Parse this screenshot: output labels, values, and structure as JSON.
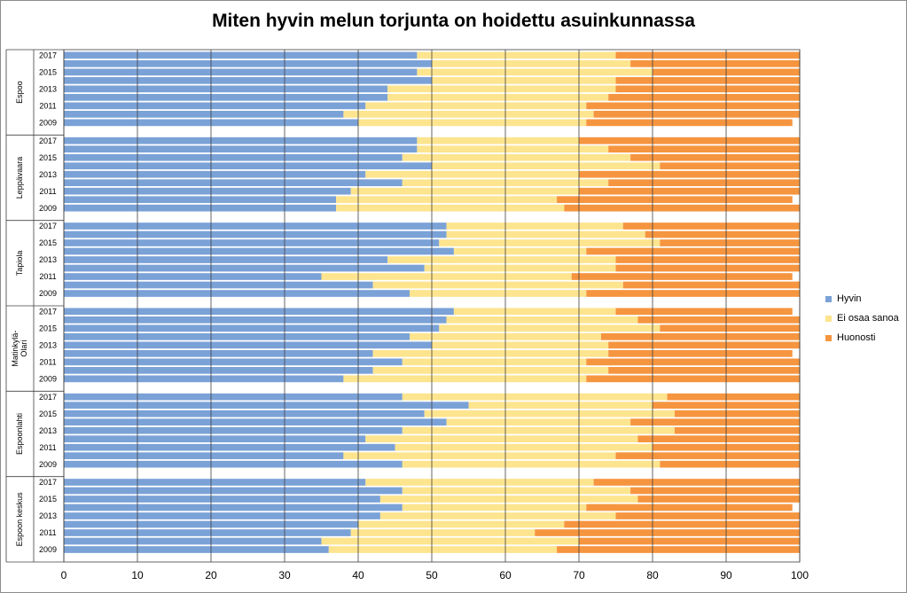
{
  "chart_data": {
    "type": "bar",
    "stacked": true,
    "orientation": "horizontal",
    "title": "Miten hyvin melun torjunta on hoidettu asuinkunnassa",
    "xlim": [
      0,
      100
    ],
    "xticks": [
      0,
      10,
      20,
      30,
      40,
      50,
      60,
      70,
      80,
      90,
      100
    ],
    "grid": true,
    "legend_position": "right",
    "series": [
      {
        "name": "Hyvin",
        "color": "#7ba2d7"
      },
      {
        "name": "Ei osaa sanoa",
        "color": "#fde48e"
      },
      {
        "name": "Huonosti",
        "color": "#f6953f"
      }
    ],
    "groups": [
      {
        "name": "Espoo",
        "years": [
          "2017",
          "2016",
          "2015",
          "2014",
          "2013",
          "2012",
          "2011",
          "2010",
          "2009"
        ],
        "shown_year_labels": [
          "2017",
          "2015",
          "2013",
          "2011",
          "2009"
        ],
        "hyvin": [
          48,
          50,
          48,
          50,
          44,
          44,
          41,
          38,
          40
        ],
        "ei_osaa": [
          27,
          27,
          32,
          25,
          31,
          30,
          30,
          34,
          31
        ],
        "huonosti": [
          25,
          23,
          20,
          25,
          25,
          26,
          29,
          28,
          28
        ]
      },
      {
        "name": "Leppävaara",
        "years": [
          "2017",
          "2016",
          "2015",
          "2014",
          "2013",
          "2012",
          "2011",
          "2010",
          "2009"
        ],
        "shown_year_labels": [
          "2017",
          "2015",
          "2013",
          "2011",
          "2009"
        ],
        "hyvin": [
          48,
          48,
          46,
          50,
          41,
          46,
          39,
          37,
          37
        ],
        "ei_osaa": [
          22,
          26,
          31,
          31,
          29,
          28,
          31,
          30,
          31
        ],
        "huonosti": [
          30,
          26,
          23,
          19,
          30,
          26,
          30,
          32,
          32
        ]
      },
      {
        "name": "Tapiola",
        "years": [
          "2017",
          "2016",
          "2015",
          "2014",
          "2013",
          "2012",
          "2011",
          "2010",
          "2009"
        ],
        "shown_year_labels": [
          "2017",
          "2015",
          "2013",
          "2011",
          "2009"
        ],
        "hyvin": [
          52,
          52,
          51,
          53,
          44,
          49,
          35,
          42,
          47
        ],
        "ei_osaa": [
          24,
          27,
          30,
          18,
          31,
          26,
          34,
          34,
          24
        ],
        "huonosti": [
          24,
          21,
          19,
          29,
          25,
          25,
          30,
          24,
          29
        ]
      },
      {
        "name": "Matinkylä-Olari",
        "years": [
          "2017",
          "2016",
          "2015",
          "2014",
          "2013",
          "2012",
          "2011",
          "2010",
          "2009"
        ],
        "shown_year_labels": [
          "2017",
          "2015",
          "2013",
          "2011",
          "2009"
        ],
        "hyvin": [
          53,
          52,
          51,
          47,
          50,
          42,
          46,
          42,
          38
        ],
        "ei_osaa": [
          22,
          26,
          30,
          26,
          24,
          32,
          25,
          32,
          33
        ],
        "huonosti": [
          24,
          22,
          19,
          27,
          26,
          25,
          29,
          26,
          29
        ]
      },
      {
        "name": "Espoonlahti",
        "years": [
          "2017",
          "2016",
          "2015",
          "2014",
          "2013",
          "2012",
          "2011",
          "2010",
          "2009"
        ],
        "shown_year_labels": [
          "2017",
          "2015",
          "2013",
          "2011",
          "2009"
        ],
        "hyvin": [
          46,
          55,
          49,
          52,
          46,
          41,
          45,
          38,
          46
        ],
        "ei_osaa": [
          36,
          25,
          34,
          25,
          37,
          37,
          35,
          37,
          35
        ],
        "huonosti": [
          18,
          20,
          17,
          23,
          17,
          22,
          20,
          25,
          19
        ]
      },
      {
        "name": "Espoon keskus",
        "years": [
          "2017",
          "2016",
          "2015",
          "2014",
          "2013",
          "2012",
          "2011",
          "2010",
          "2009"
        ],
        "shown_year_labels": [
          "2017",
          "2015",
          "2013",
          "2011",
          "2009"
        ],
        "hyvin": [
          41,
          46,
          43,
          46,
          43,
          40,
          39,
          35,
          36
        ],
        "ei_osaa": [
          31,
          31,
          35,
          25,
          32,
          28,
          25,
          35,
          31
        ],
        "huonosti": [
          28,
          23,
          22,
          28,
          25,
          32,
          36,
          30,
          33
        ]
      }
    ]
  }
}
